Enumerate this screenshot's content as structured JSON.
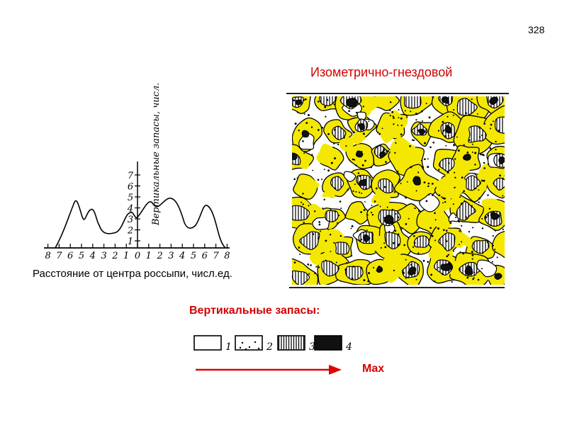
{
  "page_number": "328",
  "map_title": "Изометрично-гнездовой",
  "profile": {
    "x_axis_caption": "Расстояние от центра россыпи, числ.ед.",
    "y_axis_caption": "Вертикальные запасы, числ.ед.",
    "x_ticks_left": [
      "8",
      "7",
      "6",
      "5",
      "4",
      "3",
      "2",
      "1",
      "0"
    ],
    "x_ticks_right": [
      "1",
      "2",
      "3",
      "4",
      "5",
      "6",
      "7",
      "8"
    ],
    "y_ticks": [
      "1",
      "2",
      "3",
      "4",
      "5",
      "6",
      "7"
    ]
  },
  "legend": {
    "title": "Вертикальные запасы:",
    "items": [
      {
        "label": "1",
        "pattern": "empty"
      },
      {
        "label": "2",
        "pattern": "dots"
      },
      {
        "label": "3",
        "pattern": "vertical-hatch"
      },
      {
        "label": "4",
        "pattern": "solid-black"
      }
    ],
    "arrow_label": "Max"
  },
  "colors": {
    "accent": "#d40000",
    "fill": "#f4e800",
    "ink": "#000000"
  }
}
